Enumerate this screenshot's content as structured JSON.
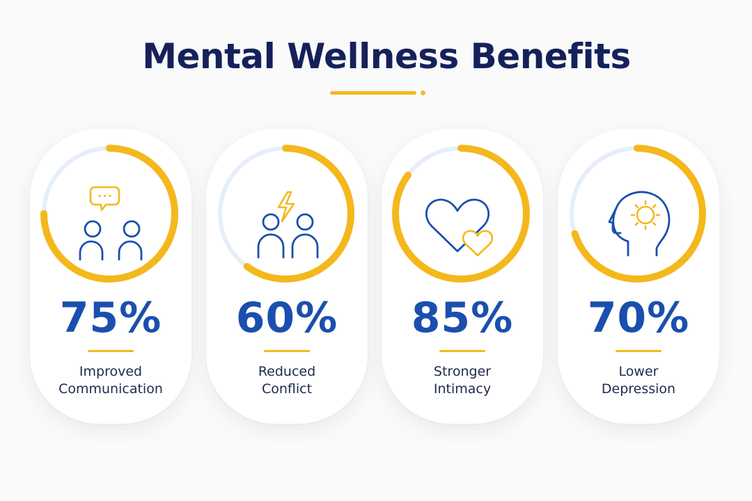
{
  "title": "Mental Wellness Benefits",
  "colors": {
    "navy": "#14215a",
    "blue": "#1a4fae",
    "accent": "#f4b81c",
    "track": "#e6eefa"
  },
  "stats": [
    {
      "value": "75%",
      "progress": 0.75,
      "label_line1": "Improved",
      "label_line2": "Communication",
      "icon": "chat-people-icon"
    },
    {
      "value": "60%",
      "progress": 0.6,
      "label_line1": "Reduced",
      "label_line2": "Conflict",
      "icon": "conflict-people-icon"
    },
    {
      "value": "85%",
      "progress": 0.85,
      "label_line1": "Stronger",
      "label_line2": "Intimacy",
      "icon": "hearts-icon"
    },
    {
      "value": "70%",
      "progress": 0.7,
      "label_line1": "Lower",
      "label_line2": "Depression",
      "icon": "head-sun-icon"
    }
  ]
}
